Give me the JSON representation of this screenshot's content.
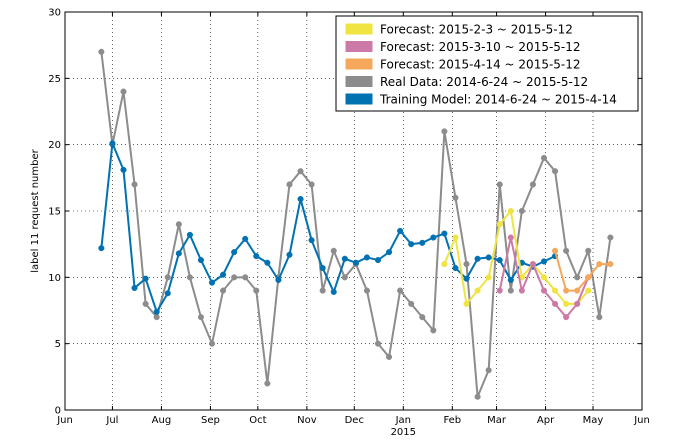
{
  "chart_data": {
    "type": "line",
    "title": "",
    "xlabel": "2015",
    "ylabel": "label 11 request number",
    "ylim": [
      0,
      30
    ],
    "xlim": [
      "2014-06-01",
      "2015-06-01"
    ],
    "y_ticks": [
      "0",
      "5",
      "10",
      "15",
      "20",
      "25",
      "30"
    ],
    "x_ticks": [
      {
        "date": "2014-06-01",
        "label": "Jun"
      },
      {
        "date": "2014-07-01",
        "label": "Jul"
      },
      {
        "date": "2014-08-01",
        "label": "Aug"
      },
      {
        "date": "2014-09-01",
        "label": "Sep"
      },
      {
        "date": "2014-10-01",
        "label": "Oct"
      },
      {
        "date": "2014-11-01",
        "label": "Nov"
      },
      {
        "date": "2014-12-01",
        "label": "Dec"
      },
      {
        "date": "2015-01-01",
        "label": "Jan"
      },
      {
        "date": "2015-02-01",
        "label": "Feb"
      },
      {
        "date": "2015-03-01",
        "label": "Mar"
      },
      {
        "date": "2015-04-01",
        "label": "Apr"
      },
      {
        "date": "2015-05-01",
        "label": "May"
      },
      {
        "date": "2015-06-01",
        "label": "Jun"
      }
    ],
    "grid": true,
    "legend_position": "top-right",
    "series": [
      {
        "name": "Real Data: 2014-6-24 ~ 2015-5-12",
        "color": "#8c8c8c",
        "points": [
          [
            "2014-06-24",
            27
          ],
          [
            "2014-07-01",
            20
          ],
          [
            "2014-07-08",
            24
          ],
          [
            "2014-07-15",
            17
          ],
          [
            "2014-07-22",
            8
          ],
          [
            "2014-07-29",
            7
          ],
          [
            "2014-08-05",
            10
          ],
          [
            "2014-08-12",
            14
          ],
          [
            "2014-08-19",
            10
          ],
          [
            "2014-08-26",
            7
          ],
          [
            "2014-09-02",
            5
          ],
          [
            "2014-09-09",
            9
          ],
          [
            "2014-09-16",
            10
          ],
          [
            "2014-09-23",
            10
          ],
          [
            "2014-09-30",
            9
          ],
          [
            "2014-10-07",
            2
          ],
          [
            "2014-10-14",
            10
          ],
          [
            "2014-10-21",
            17
          ],
          [
            "2014-10-28",
            18
          ],
          [
            "2014-11-04",
            17
          ],
          [
            "2014-11-11",
            9
          ],
          [
            "2014-11-18",
            12
          ],
          [
            "2014-11-25",
            10
          ],
          [
            "2014-12-02",
            11
          ],
          [
            "2014-12-09",
            9
          ],
          [
            "2014-12-16",
            5
          ],
          [
            "2014-12-23",
            4
          ],
          [
            "2014-12-30",
            9
          ],
          [
            "2015-01-06",
            8
          ],
          [
            "2015-01-13",
            7
          ],
          [
            "2015-01-20",
            6
          ],
          [
            "2015-01-27",
            21
          ],
          [
            "2015-02-03",
            16
          ],
          [
            "2015-02-10",
            11
          ],
          [
            "2015-02-17",
            1
          ],
          [
            "2015-02-24",
            3
          ],
          [
            "2015-03-03",
            17
          ],
          [
            "2015-03-10",
            9
          ],
          [
            "2015-03-17",
            15
          ],
          [
            "2015-03-24",
            17
          ],
          [
            "2015-03-31",
            19
          ],
          [
            "2015-04-07",
            18
          ],
          [
            "2015-04-14",
            12
          ],
          [
            "2015-04-21",
            10
          ],
          [
            "2015-04-28",
            12
          ],
          [
            "2015-05-05",
            7
          ],
          [
            "2015-05-12",
            13
          ]
        ]
      },
      {
        "name": "Training Model: 2014-6-24 ~ 2015-4-14",
        "color": "#0072b2",
        "points": [
          [
            "2014-06-24",
            12.2
          ],
          [
            "2014-07-01",
            20.1
          ],
          [
            "2014-07-08",
            18.1
          ],
          [
            "2014-07-15",
            9.2
          ],
          [
            "2014-07-22",
            9.9
          ],
          [
            "2014-07-29",
            7.4
          ],
          [
            "2014-08-05",
            8.8
          ],
          [
            "2014-08-12",
            11.8
          ],
          [
            "2014-08-19",
            13.2
          ],
          [
            "2014-08-26",
            11.3
          ],
          [
            "2014-09-02",
            9.6
          ],
          [
            "2014-09-09",
            10.2
          ],
          [
            "2014-09-16",
            11.9
          ],
          [
            "2014-09-23",
            12.9
          ],
          [
            "2014-09-30",
            11.6
          ],
          [
            "2014-10-07",
            11.1
          ],
          [
            "2014-10-14",
            9.8
          ],
          [
            "2014-10-21",
            11.7
          ],
          [
            "2014-10-28",
            15.9
          ],
          [
            "2014-11-04",
            12.8
          ],
          [
            "2014-11-11",
            10.7
          ],
          [
            "2014-11-18",
            8.9
          ],
          [
            "2014-11-25",
            11.4
          ],
          [
            "2014-12-02",
            11.1
          ],
          [
            "2014-12-09",
            11.5
          ],
          [
            "2014-12-16",
            11.3
          ],
          [
            "2014-12-23",
            11.9
          ],
          [
            "2014-12-30",
            13.5
          ],
          [
            "2015-01-06",
            12.5
          ],
          [
            "2015-01-13",
            12.6
          ],
          [
            "2015-01-20",
            13.0
          ],
          [
            "2015-01-27",
            13.3
          ],
          [
            "2015-02-03",
            10.7
          ],
          [
            "2015-02-10",
            9.9
          ],
          [
            "2015-02-17",
            11.4
          ],
          [
            "2015-02-24",
            11.5
          ],
          [
            "2015-03-03",
            11.3
          ],
          [
            "2015-03-10",
            9.8
          ],
          [
            "2015-03-17",
            11.1
          ],
          [
            "2015-03-24",
            10.8
          ],
          [
            "2015-03-31",
            11.2
          ],
          [
            "2015-04-07",
            11.6
          ]
        ]
      },
      {
        "name": "Forecast: 2015-2-3 ~ 2015-5-12",
        "color": "#f0e442",
        "points": [
          [
            "2015-01-27",
            11
          ],
          [
            "2015-02-03",
            13
          ],
          [
            "2015-02-10",
            8
          ],
          [
            "2015-02-17",
            9
          ],
          [
            "2015-02-24",
            10
          ],
          [
            "2015-03-03",
            14
          ],
          [
            "2015-03-10",
            15
          ],
          [
            "2015-03-17",
            10
          ],
          [
            "2015-03-24",
            11
          ],
          [
            "2015-03-31",
            10
          ],
          [
            "2015-04-07",
            9
          ],
          [
            "2015-04-14",
            8
          ],
          [
            "2015-04-21",
            8
          ],
          [
            "2015-04-28",
            9
          ]
        ]
      },
      {
        "name": "Forecast: 2015-3-10 ~ 2015-5-12",
        "color": "#cc79a7",
        "points": [
          [
            "2015-03-03",
            9
          ],
          [
            "2015-03-10",
            13
          ],
          [
            "2015-03-17",
            9
          ],
          [
            "2015-03-24",
            11
          ],
          [
            "2015-03-31",
            9
          ],
          [
            "2015-04-07",
            8
          ],
          [
            "2015-04-14",
            7
          ],
          [
            "2015-04-21",
            8
          ],
          [
            "2015-04-28",
            10
          ]
        ]
      },
      {
        "name": "Forecast: 2015-4-14 ~ 2015-5-12",
        "color": "#f5a85c",
        "points": [
          [
            "2015-04-07",
            12
          ],
          [
            "2015-04-14",
            9
          ],
          [
            "2015-04-21",
            9
          ],
          [
            "2015-04-28",
            10
          ],
          [
            "2015-05-05",
            11
          ],
          [
            "2015-05-12",
            11
          ]
        ]
      }
    ],
    "legend": [
      {
        "label": "Forecast: 2015-2-3 ~ 2015-5-12",
        "color": "#f0e442"
      },
      {
        "label": "Forecast: 2015-3-10 ~ 2015-5-12",
        "color": "#cc79a7"
      },
      {
        "label": "Forecast: 2015-4-14 ~ 2015-5-12",
        "color": "#f5a85c"
      },
      {
        "label": "Real Data: 2014-6-24 ~ 2015-5-12",
        "color": "#8c8c8c"
      },
      {
        "label": "Training Model: 2014-6-24 ~ 2015-4-14",
        "color": "#0072b2"
      }
    ]
  }
}
